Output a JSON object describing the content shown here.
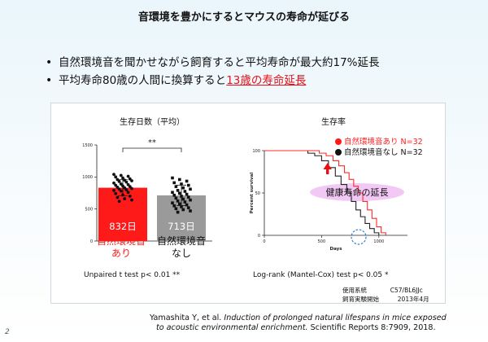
{
  "slide": {
    "title": "音環境を豊かにするとマウスの寿命が延びる",
    "page_number": "2"
  },
  "bullets": [
    {
      "text": "自然環境音を聞かせながら飼育すると平均寿命が最大約17%延長",
      "highlight": ""
    },
    {
      "text": "平均寿命80歳の人間に換算すると",
      "highlight": "13歳の寿命延長"
    }
  ],
  "left_chart": {
    "title": "生存日数（平均）",
    "significance": "**",
    "bar_labels": [
      "832日",
      "713日"
    ],
    "group_labels": [
      [
        "自然環境音",
        "あり"
      ],
      [
        "自然環境音",
        "なし"
      ]
    ],
    "test": "Unpaired t test p< 0.01 **"
  },
  "right_chart": {
    "title": "生存率",
    "legend": [
      "自然環境音あり N=32",
      "自然環境音なし N=32"
    ],
    "annotation": "健康寿命の延長",
    "test": "Log-rank (Mantel-Cox) test p< 0.05 *"
  },
  "meta": {
    "strain_label": "使用系統",
    "strain_value": "C57/BL6JJc",
    "start_label": "飼育実験開始",
    "start_value": "2013年4月"
  },
  "reference": {
    "authors": "Yamashita Y, et al.",
    "title_line1": "Induction of prolonged natural lifespans in mice exposed",
    "title_line2": "to acoustic environmental enrichment.",
    "journal": "Scientific Reports 8:7909, 2018."
  },
  "colors": {
    "sound": "#ff1a1a",
    "no_sound": "#9a9a9a",
    "sound_line": "#ff2a2a",
    "no_sound_line": "#222222",
    "highlight_text": "#e8101a",
    "ellipse_fill": "#f2c8f5",
    "dashed_circle": "#2a7fd4",
    "arrow": "#e81010"
  },
  "chart_data": [
    {
      "type": "bar",
      "title": "生存日数（平均）",
      "categories": [
        "自然環境音あり",
        "自然環境音なし"
      ],
      "values": [
        832,
        713
      ],
      "error_sd": [
        125,
        160
      ],
      "ylim": [
        0,
        1500
      ],
      "yticks": [
        0,
        500,
        1000,
        1500
      ],
      "points": [
        [
          1040,
          1025,
          1010,
          1000,
          985,
          970,
          960,
          950,
          940,
          930,
          920,
          905,
          890,
          880,
          870,
          860,
          850,
          840,
          830,
          820,
          810,
          800,
          790,
          780,
          760,
          740,
          720,
          700,
          680,
          660,
          640,
          620
        ],
        [
          985,
          960,
          935,
          910,
          890,
          870,
          850,
          830,
          810,
          790,
          775,
          760,
          745,
          730,
          715,
          700,
          685,
          670,
          655,
          640,
          625,
          610,
          595,
          580,
          565,
          550,
          535,
          520,
          505,
          490,
          470,
          450
        ]
      ],
      "significance": "**"
    },
    {
      "type": "line",
      "title": "生存率",
      "xlabel": "Days",
      "ylabel": "Percent survival",
      "xlim": [
        0,
        1250
      ],
      "xticks": [
        0,
        500,
        1000
      ],
      "ylim": [
        0,
        100
      ],
      "yticks": [
        0,
        50,
        100
      ],
      "series": [
        {
          "name": "自然環境音あり N=32",
          "x": [
            0,
            400,
            480,
            540,
            600,
            650,
            700,
            740,
            780,
            820,
            860,
            900,
            940,
            980,
            1020,
            1060
          ],
          "y": [
            100,
            100,
            97,
            94,
            88,
            82,
            74,
            66,
            58,
            50,
            40,
            30,
            20,
            10,
            3,
            0
          ]
        },
        {
          "name": "自然環境音なし N=32",
          "x": [
            0,
            300,
            380,
            440,
            500,
            560,
            620,
            670,
            720,
            760,
            800,
            840,
            880,
            920,
            960,
            1000
          ],
          "y": [
            100,
            100,
            97,
            94,
            88,
            80,
            70,
            60,
            50,
            40,
            30,
            22,
            14,
            8,
            3,
            0
          ]
        }
      ]
    }
  ]
}
